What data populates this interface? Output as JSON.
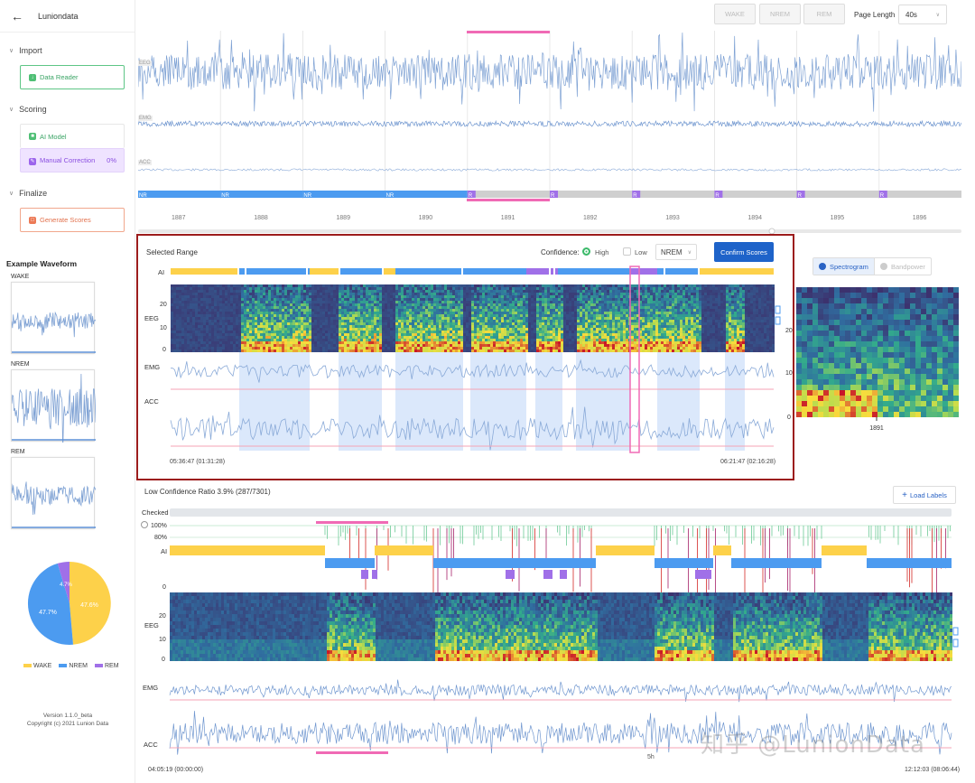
{
  "app": {
    "title": "Luniondata"
  },
  "sidebar": {
    "sections": [
      {
        "label": "Import",
        "buttons": [
          {
            "label": "Data Reader"
          }
        ]
      },
      {
        "label": "Scoring",
        "buttons": [
          {
            "label": "AI Model"
          },
          {
            "label": "Manual Correction",
            "progress": "0%"
          }
        ]
      },
      {
        "label": "Finalize",
        "buttons": [
          {
            "label": "Generate Scores"
          }
        ]
      }
    ],
    "example_title": "Example Waveform",
    "examples": [
      "WAKE",
      "NREM",
      "REM"
    ],
    "pie": {
      "wake_pct": "47.6%",
      "nrem_pct": "47.7%",
      "rem_pct": "4.7%"
    },
    "legend": [
      "WAKE",
      "NREM",
      "REM"
    ],
    "version_line1": "Version 1.1.0_beta",
    "version_line2": "Copyright (c) 2021 Lunion Data"
  },
  "toolbar": {
    "stage_buttons": [
      "WAKE",
      "NREM",
      "REM"
    ],
    "page_length_label": "Page Length",
    "page_length_value": "40s"
  },
  "top_panel": {
    "tracks": [
      "EEG",
      "EMG",
      "ACC"
    ],
    "stage_tags": [
      "NR",
      "NR",
      "NR",
      "NR",
      "R",
      "R",
      "R",
      "R",
      "R",
      "R"
    ],
    "epochs": [
      "1887",
      "1888",
      "1889",
      "1890",
      "1891",
      "1892",
      "1893",
      "1894",
      "1895",
      "1896"
    ]
  },
  "selected_range": {
    "title": "Selected Range",
    "confidence_label": "Confidence:",
    "high_label": "High",
    "low_label": "Low",
    "stage_select": "NREM",
    "confirm_label": "Confirm Scores",
    "row_labels": {
      "ai": "AI",
      "eeg": "EEG",
      "emg": "EMG",
      "acc": "ACC"
    },
    "eeg_ticks": [
      "20",
      "10",
      "0"
    ],
    "start_time": "05:36:47 (01:31:28)",
    "end_time": "06:21:47 (02:16:28)"
  },
  "spectrum_panel": {
    "spectrogram_label": "Spectrogram",
    "bandpower_label": "Bandpower",
    "ticks": [
      "20",
      "10",
      "0"
    ],
    "epoch": "1891"
  },
  "overview": {
    "low_conf_ratio": "Low Confidence Ratio 3.9% (287/7301)",
    "load_labels": "Load Labels",
    "checked_label": "Checked",
    "conf_ticks": [
      "100%",
      "80%",
      "0"
    ],
    "row_labels": {
      "ai": "AI",
      "eeg": "EEG",
      "emg": "EMG",
      "acc": "ACC"
    },
    "eeg_ticks": [
      "20",
      "10",
      "0"
    ],
    "hour_marker": "5h",
    "start_time": "04:05:19 (00:00:00)",
    "end_time": "12:12:03 (08:06:44)"
  },
  "watermark": "知乎 @LunionData",
  "colors": {
    "wake": "#fdd14a",
    "nrem": "#4c9bf0",
    "rem": "#a070e8",
    "accent": "#1e63c9",
    "highlight": "#f06ab5",
    "border_red": "#9c1c1c"
  }
}
